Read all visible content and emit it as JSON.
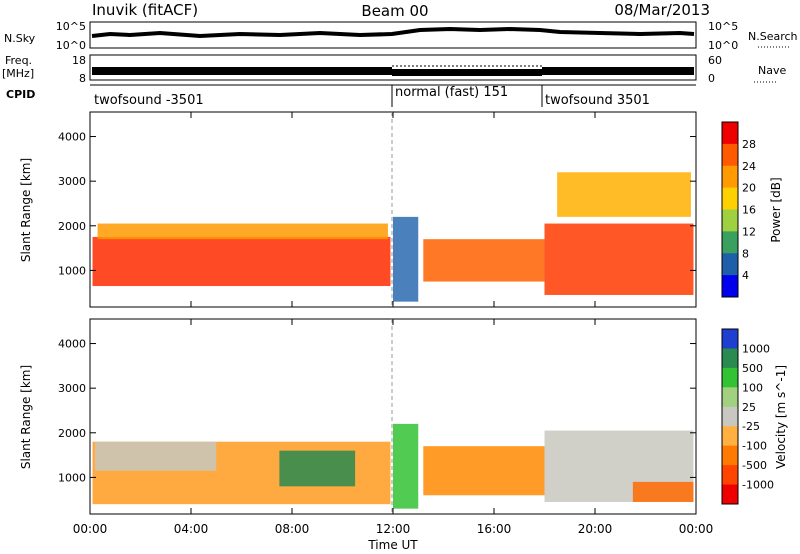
{
  "header": {
    "station": "Inuvik (fitACF)",
    "beam": "Beam 00",
    "date": "08/Mar/2013"
  },
  "strip": {
    "nsky_label": "N.Sky",
    "nsky_top": "10^5",
    "nsky_bottom": "10^0",
    "nsearch_top": "10^5",
    "nsearch_bottom": "10^0",
    "nsearch_label": "N.Search",
    "freq_label_1": "Freq.",
    "freq_label_2": "[MHz]",
    "freq_top": "18",
    "freq_bottom": "8",
    "nave_top": "60",
    "nave_bottom": "0",
    "nave_label": "Nave",
    "cpid_label": "CPID",
    "cpid_segments": [
      {
        "label": "twofsound -3501",
        "start_h": 0,
        "end_h": 12
      },
      {
        "label": "normal (fast) 151",
        "start_h": 12,
        "end_h": 18
      },
      {
        "label": "twofsound 3501",
        "start_h": 18,
        "end_h": 24
      }
    ]
  },
  "chart_data": [
    {
      "type": "heatmap",
      "title": "",
      "xlabel": "Time UT",
      "ylabel": "Slant Range [km]",
      "x_ticks": [
        "00:00",
        "04:00",
        "08:00",
        "12:00",
        "16:00",
        "20:00",
        "00:00"
      ],
      "y_ticks": [
        "1000",
        "2000",
        "3000",
        "4000"
      ],
      "xlim_hours": [
        0,
        24
      ],
      "ylim_km": [
        180,
        4550
      ],
      "colorbar": {
        "label": "Power [dB]",
        "ticks": [
          "28",
          "24",
          "20",
          "16",
          "12",
          "8",
          "4"
        ],
        "colors": [
          "#ee0000",
          "#ff5a00",
          "#ff9a00",
          "#ffd000",
          "#9ed040",
          "#3aa060",
          "#1f5faa",
          "#0000ee"
        ]
      },
      "bands": [
        {
          "start_h": 0.1,
          "end_h": 11.9,
          "low_km": 650,
          "high_km": 1750,
          "color": "#ff2a00"
        },
        {
          "start_h": 0.3,
          "end_h": 11.8,
          "low_km": 1700,
          "high_km": 2050,
          "color": "#ff9a00"
        },
        {
          "start_h": 12.0,
          "end_h": 13.0,
          "low_km": 300,
          "high_km": 2200,
          "color": "#2a6ab0"
        },
        {
          "start_h": 13.2,
          "end_h": 18.0,
          "low_km": 750,
          "high_km": 1700,
          "color": "#ff6000"
        },
        {
          "start_h": 18.0,
          "end_h": 23.9,
          "low_km": 450,
          "high_km": 2050,
          "color": "#ff3a00"
        },
        {
          "start_h": 18.5,
          "end_h": 23.8,
          "low_km": 2200,
          "high_km": 3200,
          "color": "#ffb000"
        }
      ]
    },
    {
      "type": "heatmap",
      "title": "",
      "xlabel": "Time UT",
      "ylabel": "Slant Range [km]",
      "x_ticks": [
        "00:00",
        "04:00",
        "08:00",
        "12:00",
        "16:00",
        "20:00",
        "00:00"
      ],
      "y_ticks": [
        "1000",
        "2000",
        "3000",
        "4000"
      ],
      "xlim_hours": [
        0,
        24
      ],
      "ylim_km": [
        180,
        4550
      ],
      "colorbar": {
        "label": "Velocity [m s^-1]",
        "ticks": [
          "1000",
          "500",
          "100",
          "25",
          "-25",
          "-100",
          "-500",
          "-1000"
        ],
        "colors": [
          "#1f3fd0",
          "#2a8a50",
          "#33c233",
          "#a0d080",
          "#c8c8c0",
          "#ffb040",
          "#ff7a00",
          "#ff4400",
          "#ee0000"
        ]
      },
      "bands": [
        {
          "start_h": 0.1,
          "end_h": 11.9,
          "low_km": 400,
          "high_km": 1800,
          "color": "#ff9a20"
        },
        {
          "start_h": 0.2,
          "end_h": 5.0,
          "low_km": 1150,
          "high_km": 1800,
          "color": "#c8c8c0"
        },
        {
          "start_h": 7.5,
          "end_h": 10.5,
          "low_km": 800,
          "high_km": 1600,
          "color": "#2a8a50"
        },
        {
          "start_h": 12.0,
          "end_h": 13.0,
          "low_km": 300,
          "high_km": 2200,
          "color": "#33c233"
        },
        {
          "start_h": 13.2,
          "end_h": 18.0,
          "low_km": 600,
          "high_km": 1700,
          "color": "#ff8a00"
        },
        {
          "start_h": 18.0,
          "end_h": 23.9,
          "low_km": 450,
          "high_km": 2050,
          "color": "#c8c8c0"
        },
        {
          "start_h": 21.5,
          "end_h": 23.9,
          "low_km": 450,
          "high_km": 900,
          "color": "#ff6a00"
        }
      ]
    }
  ]
}
